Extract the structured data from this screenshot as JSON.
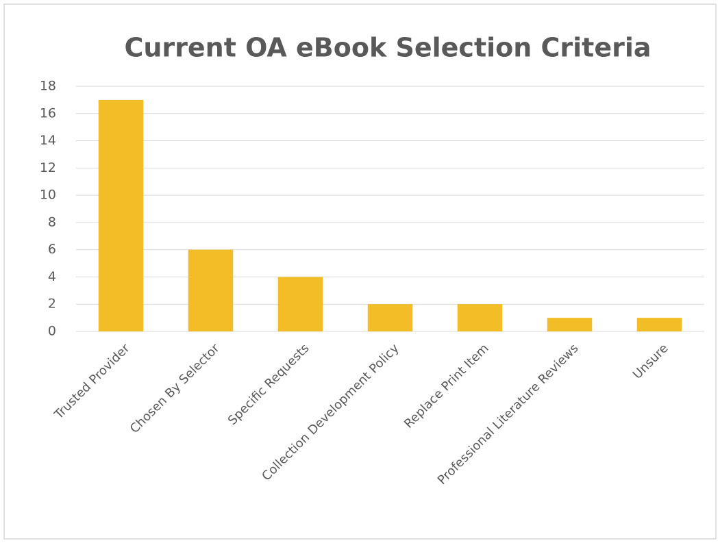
{
  "chart_data": {
    "type": "bar",
    "title": "Current OA eBook Selection Criteria",
    "categories": [
      "Trusted Provider",
      "Chosen By Selector",
      "Specific Requests",
      "Collection Development Policy",
      "Replace Print Item",
      "Professional Literature Reviews",
      "Unsure"
    ],
    "values": [
      17,
      6,
      4,
      2,
      2,
      1,
      1
    ],
    "color": "#f2bd27",
    "ylim": [
      0,
      18
    ],
    "yticks": [
      0,
      2,
      4,
      6,
      8,
      10,
      12,
      14,
      16,
      18
    ],
    "grid": true
  }
}
